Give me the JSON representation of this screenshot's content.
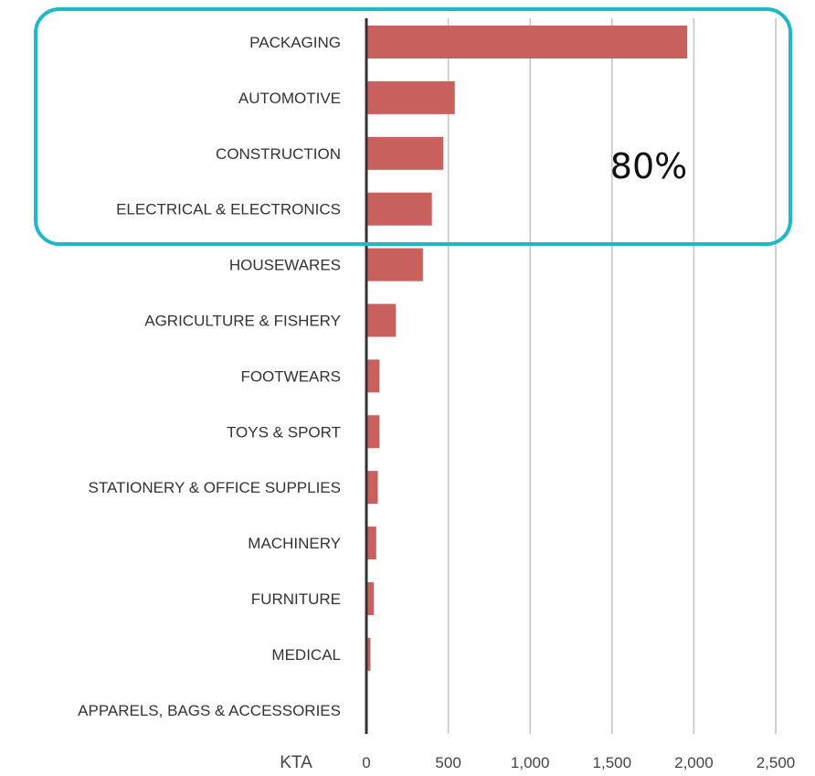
{
  "chart_data": {
    "type": "bar",
    "orientation": "horizontal",
    "categories": [
      "PACKAGING",
      "AUTOMOTIVE",
      "CONSTRUCTION",
      "ELECTRICAL & ELECTRONICS",
      "HOUSEWARES",
      "AGRICULTURE & FISHERY",
      "FOOTWEARS",
      "TOYS & SPORT",
      "STATIONERY & OFFICE SUPPLIES",
      "MACHINERY",
      "FURNITURE",
      "MEDICAL",
      "APPARELS, BAGS & ACCESSORIES"
    ],
    "values": [
      1960,
      540,
      470,
      400,
      345,
      180,
      80,
      80,
      70,
      60,
      45,
      25,
      5
    ],
    "xlabel": "KTA",
    "xlim": [
      0,
      2500
    ],
    "xticks": [
      "0",
      "500",
      "1,000",
      "1,500",
      "2,000",
      "2,500"
    ],
    "xtick_values": [
      0,
      500,
      1000,
      1500,
      2000,
      2500
    ],
    "bar_color": "#c8605e",
    "grid": true,
    "annotation": {
      "text": "80%",
      "highlight_color": "#1fb8c8",
      "covers_categories": [
        "PACKAGING",
        "AUTOMOTIVE",
        "CONSTRUCTION",
        "ELECTRICAL & ELECTRONICS"
      ]
    }
  }
}
